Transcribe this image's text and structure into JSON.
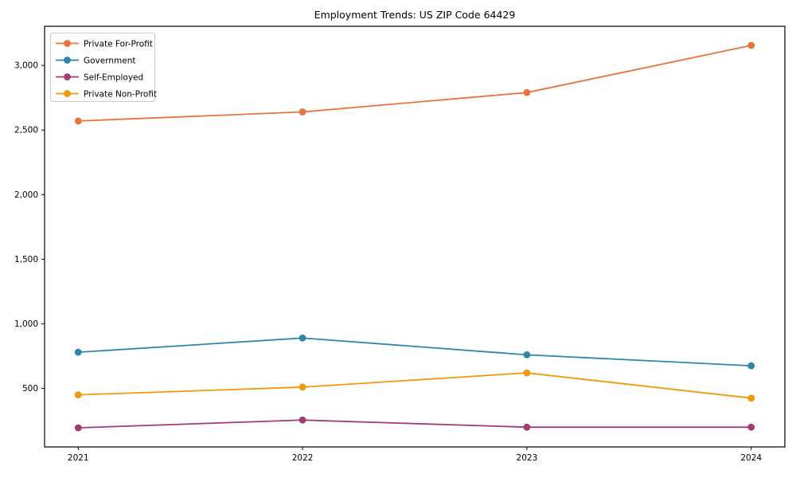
{
  "chart_data": {
    "type": "line",
    "title": "Employment Trends: US ZIP Code 64429",
    "xlabel": "",
    "ylabel": "",
    "categories": [
      "2021",
      "2022",
      "2023",
      "2024"
    ],
    "series": [
      {
        "name": "Private For-Profit",
        "color": "#e8743b",
        "values": [
          2570,
          2640,
          2790,
          3155
        ]
      },
      {
        "name": "Government",
        "color": "#2e86ab",
        "values": [
          780,
          890,
          760,
          675
        ]
      },
      {
        "name": "Self-Employed",
        "color": "#a23b72",
        "values": [
          195,
          255,
          200,
          200
        ]
      },
      {
        "name": "Private Non-Profit",
        "color": "#f0990d",
        "values": [
          450,
          510,
          620,
          425
        ]
      }
    ],
    "ylim": [
      47,
      3303
    ],
    "yticks": [
      500,
      1000,
      1500,
      2000,
      2500,
      3000
    ],
    "grid": false,
    "marker": "circle",
    "legend_position": "upper-left",
    "axis_color": "#000000",
    "legend_border_color": "#cccccc"
  }
}
